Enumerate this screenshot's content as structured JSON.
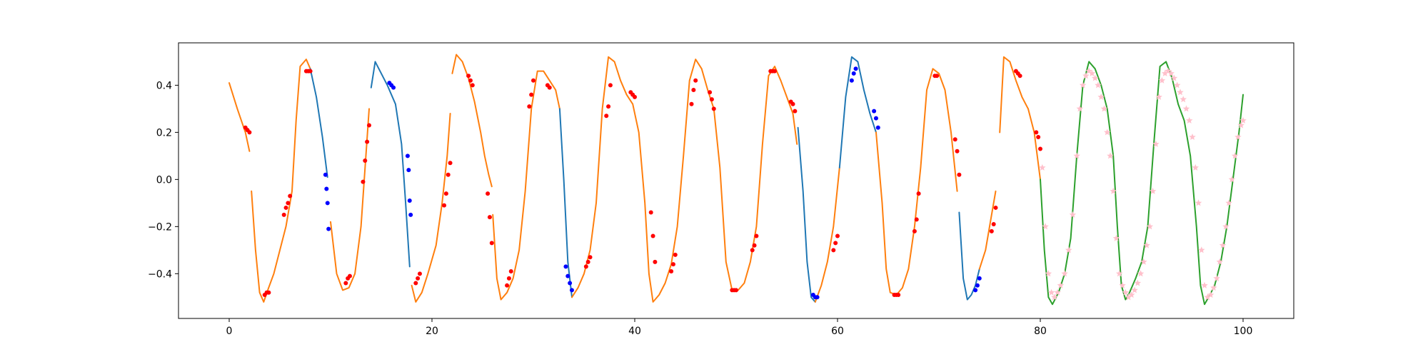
{
  "chart_data": {
    "type": "line",
    "title": "",
    "xlabel": "",
    "ylabel": "",
    "xlim": [
      -5,
      105
    ],
    "ylim": [
      -0.59,
      0.58
    ],
    "xticks": [
      0,
      20,
      40,
      60,
      80,
      100
    ],
    "xtick_labels": [
      "0",
      "20",
      "40",
      "60",
      "80",
      "100"
    ],
    "yticks": [
      -0.4,
      -0.2,
      0.0,
      0.2,
      0.4
    ],
    "ytick_labels": [
      "−0.4",
      "−0.2",
      "0.0",
      "0.2",
      "0.4"
    ],
    "grid": false,
    "legend": "none",
    "colors": {
      "orange": "#ff7f0e",
      "blue": "#1f77b4",
      "green": "#2ca02c",
      "red_points": "#ff0000",
      "blue_points": "#0000ff",
      "pink_points": "#ffc0cb"
    },
    "series": [
      {
        "color": "orange",
        "style": "line",
        "x": [
          0,
          0.8,
          1.6,
          2.0
        ],
        "y": [
          0.41,
          0.3,
          0.2,
          0.12
        ]
      },
      {
        "color": "orange",
        "style": "line",
        "x": [
          2.2,
          2.6,
          3.0,
          3.4,
          3.8,
          4.4,
          5.0,
          5.6,
          6.2,
          6.6,
          7.0,
          7.6,
          8.0
        ],
        "y": [
          -0.05,
          -0.3,
          -0.48,
          -0.52,
          -0.47,
          -0.4,
          -0.3,
          -0.2,
          -0.05,
          0.25,
          0.48,
          0.51,
          0.47
        ]
      },
      {
        "color": "blue",
        "style": "line",
        "x": [
          8.0,
          8.6,
          9.2,
          9.7
        ],
        "y": [
          0.47,
          0.35,
          0.18,
          0.01
        ]
      },
      {
        "color": "orange",
        "style": "line",
        "x": [
          10.0,
          10.6,
          11.2,
          11.8,
          12.4,
          13.0,
          13.4,
          13.8
        ],
        "y": [
          -0.18,
          -0.4,
          -0.47,
          -0.46,
          -0.4,
          -0.2,
          0.05,
          0.3
        ]
      },
      {
        "color": "blue",
        "style": "line",
        "x": [
          14.0,
          14.4,
          15.0,
          15.6,
          16.4,
          17.0,
          17.4,
          17.8
        ],
        "y": [
          0.39,
          0.5,
          0.45,
          0.4,
          0.32,
          0.15,
          -0.1,
          -0.37
        ]
      },
      {
        "color": "orange",
        "style": "line",
        "x": [
          18.0,
          18.4,
          19.0,
          19.6,
          20.4,
          21.0,
          21.5,
          21.8
        ],
        "y": [
          -0.45,
          -0.52,
          -0.48,
          -0.4,
          -0.28,
          -0.1,
          0.1,
          0.28
        ]
      },
      {
        "color": "orange",
        "style": "line",
        "x": [
          22.0,
          22.4,
          23.0,
          23.6,
          24.2,
          24.8,
          25.2,
          25.6,
          25.9
        ],
        "y": [
          0.45,
          0.53,
          0.5,
          0.43,
          0.33,
          0.2,
          0.1,
          0.02,
          -0.03
        ]
      },
      {
        "color": "orange",
        "style": "line",
        "x": [
          26.0,
          26.4,
          26.8,
          27.4,
          28.0,
          28.6,
          29.2,
          29.8,
          30.4,
          31.0,
          31.6,
          32.2,
          32.6
        ],
        "y": [
          -0.15,
          -0.42,
          -0.51,
          -0.48,
          -0.42,
          -0.3,
          -0.05,
          0.3,
          0.46,
          0.46,
          0.42,
          0.38,
          0.3
        ]
      },
      {
        "color": "blue",
        "style": "line",
        "x": [
          32.6,
          33.0,
          33.4,
          33.8
        ],
        "y": [
          0.3,
          0.0,
          -0.35,
          -0.5
        ]
      },
      {
        "color": "orange",
        "style": "line",
        "x": [
          33.8,
          34.4,
          35.0,
          35.6,
          36.2,
          36.8,
          37.4,
          38.0,
          38.6,
          39.2,
          39.8,
          40.4,
          41.0,
          41.4,
          41.8,
          42.4,
          43.0,
          43.6,
          44.2,
          44.8,
          45.4,
          46.0,
          46.6,
          47.2,
          47.8,
          48.4,
          49.0,
          49.6,
          50.2,
          50.8,
          51.4,
          52.0,
          52.6,
          53.2,
          53.8,
          54.4,
          55.0,
          55.6,
          56.0
        ],
        "y": [
          -0.5,
          -0.46,
          -0.4,
          -0.3,
          -0.1,
          0.3,
          0.52,
          0.5,
          0.42,
          0.36,
          0.32,
          0.2,
          -0.1,
          -0.4,
          -0.52,
          -0.49,
          -0.44,
          -0.36,
          -0.2,
          0.1,
          0.42,
          0.51,
          0.47,
          0.38,
          0.3,
          0.05,
          -0.35,
          -0.47,
          -0.47,
          -0.44,
          -0.35,
          -0.2,
          0.15,
          0.44,
          0.48,
          0.42,
          0.35,
          0.28,
          0.15
        ]
      },
      {
        "color": "blue",
        "style": "line",
        "x": [
          56.1,
          56.6,
          57.0,
          57.4,
          57.8
        ],
        "y": [
          0.22,
          -0.05,
          -0.35,
          -0.5,
          -0.52
        ]
      },
      {
        "color": "orange",
        "style": "line",
        "x": [
          57.8,
          58.4,
          59.0,
          59.6,
          60.2
        ],
        "y": [
          -0.52,
          -0.45,
          -0.35,
          -0.2,
          0.05
        ]
      },
      {
        "color": "blue",
        "style": "line",
        "x": [
          60.2,
          60.8,
          61.4,
          62.0,
          62.6,
          63.2,
          63.8
        ],
        "y": [
          0.05,
          0.35,
          0.52,
          0.5,
          0.38,
          0.28,
          0.2
        ]
      },
      {
        "color": "orange",
        "style": "line",
        "x": [
          63.8,
          64.4,
          64.8,
          65.2,
          65.8,
          66.4,
          67.0,
          67.6,
          68.2,
          68.8,
          69.4,
          70.0,
          70.6,
          71.2,
          71.8
        ],
        "y": [
          0.2,
          -0.1,
          -0.38,
          -0.48,
          -0.49,
          -0.46,
          -0.38,
          -0.2,
          0.05,
          0.38,
          0.47,
          0.45,
          0.38,
          0.2,
          -0.05
        ]
      },
      {
        "color": "blue",
        "style": "line",
        "x": [
          72.0,
          72.4,
          72.8,
          73.2,
          73.6,
          74.0
        ],
        "y": [
          -0.14,
          -0.42,
          -0.51,
          -0.49,
          -0.45,
          -0.38
        ]
      },
      {
        "color": "orange",
        "style": "line",
        "x": [
          74.0,
          74.6,
          75.2,
          75.6
        ],
        "y": [
          -0.38,
          -0.3,
          -0.15,
          -0.05
        ]
      },
      {
        "color": "orange",
        "style": "line",
        "x": [
          76.0,
          76.4,
          77.0,
          77.6,
          78.2,
          78.8
        ],
        "y": [
          0.2,
          0.52,
          0.5,
          0.42,
          0.35,
          0.3
        ]
      },
      {
        "color": "orange",
        "style": "line",
        "x": [
          78.8,
          79.4,
          80.0
        ],
        "y": [
          0.3,
          0.2,
          0.0
        ]
      },
      {
        "color": "green",
        "style": "line",
        "x": [
          80.0,
          80.4,
          80.8,
          81.2,
          81.8,
          82.4,
          83.0,
          83.6,
          84.2,
          84.8,
          85.4,
          86.0,
          86.6,
          87.2,
          87.6,
          88.0,
          88.4,
          88.8,
          89.4,
          90.0,
          90.6,
          91.2,
          91.8,
          92.4,
          93.0,
          93.6,
          94.2,
          94.8,
          95.4,
          95.8,
          96.2,
          96.6,
          97.2,
          97.8,
          98.4,
          99.0,
          99.6,
          100.0
        ],
        "y": [
          0.0,
          -0.3,
          -0.5,
          -0.53,
          -0.48,
          -0.4,
          -0.25,
          0.1,
          0.4,
          0.5,
          0.47,
          0.4,
          0.3,
          0.1,
          -0.2,
          -0.45,
          -0.51,
          -0.48,
          -0.42,
          -0.35,
          -0.2,
          0.15,
          0.48,
          0.5,
          0.43,
          0.32,
          0.25,
          0.1,
          -0.2,
          -0.45,
          -0.53,
          -0.5,
          -0.45,
          -0.35,
          -0.2,
          0.0,
          0.2,
          0.36
        ]
      }
    ],
    "points": [
      {
        "color": "red",
        "marker": "dot",
        "x": [
          1.6,
          1.8,
          2.0,
          3.5,
          3.7,
          3.9,
          5.4,
          5.6,
          5.8,
          6.0,
          7.6,
          7.8,
          8.0,
          11.5,
          11.7,
          11.9,
          13.2,
          13.4,
          13.6,
          13.8,
          18.4,
          18.6,
          18.8,
          21.2,
          21.4,
          21.6,
          21.8,
          23.6,
          23.8,
          24.0,
          25.5,
          25.7,
          25.9,
          27.4,
          27.6,
          27.8,
          29.6,
          29.8,
          30.0,
          31.4,
          31.6,
          35.2,
          35.4,
          35.6,
          37.2,
          37.4,
          37.6,
          39.6,
          39.8,
          40.0,
          41.6,
          41.8,
          42.0,
          43.6,
          43.8,
          44.0,
          45.6,
          45.8,
          46.0,
          47.4,
          47.6,
          47.8,
          49.6,
          49.8,
          50.0,
          51.6,
          51.8,
          52.0,
          53.4,
          53.6,
          53.8,
          55.4,
          55.6,
          55.8,
          59.6,
          59.8,
          60.0,
          65.6,
          65.8,
          66.0,
          67.6,
          67.8,
          68.0,
          69.6,
          69.8,
          71.6,
          71.8,
          72.0,
          75.2,
          75.4,
          75.6,
          77.6,
          77.8,
          78.0,
          79.6,
          79.8,
          80.0
        ],
        "y": [
          0.22,
          0.21,
          0.2,
          -0.49,
          -0.48,
          -0.48,
          -0.15,
          -0.12,
          -0.1,
          -0.07,
          0.46,
          0.46,
          0.46,
          -0.44,
          -0.42,
          -0.41,
          -0.01,
          0.08,
          0.16,
          0.23,
          -0.44,
          -0.42,
          -0.4,
          -0.11,
          -0.06,
          0.02,
          0.07,
          0.44,
          0.42,
          0.4,
          -0.06,
          -0.16,
          -0.27,
          -0.45,
          -0.42,
          -0.39,
          0.31,
          0.36,
          0.42,
          0.4,
          0.39,
          -0.37,
          -0.35,
          -0.33,
          0.27,
          0.31,
          0.4,
          0.37,
          0.36,
          0.35,
          -0.14,
          -0.24,
          -0.35,
          -0.39,
          -0.36,
          -0.32,
          0.32,
          0.38,
          0.42,
          0.37,
          0.34,
          0.3,
          -0.47,
          -0.47,
          -0.47,
          -0.3,
          -0.28,
          -0.24,
          0.46,
          0.46,
          0.46,
          0.33,
          0.32,
          0.29,
          -0.3,
          -0.27,
          -0.24,
          -0.49,
          -0.49,
          -0.49,
          -0.22,
          -0.17,
          -0.06,
          0.44,
          0.44,
          0.17,
          0.12,
          0.02,
          -0.22,
          -0.19,
          -0.12,
          0.46,
          0.45,
          0.44,
          0.2,
          0.18,
          0.13
        ]
      },
      {
        "color": "blue",
        "marker": "dot",
        "x": [
          9.5,
          9.6,
          9.7,
          9.8,
          15.8,
          16.0,
          16.2,
          17.6,
          17.7,
          17.8,
          17.9,
          33.2,
          33.4,
          33.6,
          33.8,
          57.6,
          57.8,
          58.0,
          61.4,
          61.6,
          61.8,
          63.6,
          63.8,
          64.0,
          73.6,
          73.8,
          74.0
        ],
        "y": [
          0.02,
          -0.04,
          -0.1,
          -0.21,
          0.41,
          0.4,
          0.39,
          0.1,
          0.04,
          -0.09,
          -0.15,
          -0.37,
          -0.41,
          -0.44,
          -0.47,
          -0.49,
          -0.5,
          -0.5,
          0.42,
          0.45,
          0.47,
          0.29,
          0.26,
          0.22,
          -0.47,
          -0.45,
          -0.42
        ]
      },
      {
        "color": "pink",
        "marker": "star",
        "x": [
          80.2,
          80.5,
          80.8,
          81.1,
          81.4,
          81.7,
          82.0,
          82.4,
          82.8,
          83.2,
          83.6,
          83.9,
          84.2,
          84.5,
          84.8,
          85.1,
          85.4,
          85.7,
          86.0,
          86.3,
          86.6,
          86.9,
          87.2,
          87.5,
          87.8,
          88.1,
          88.4,
          88.7,
          89.0,
          89.3,
          89.6,
          89.9,
          90.2,
          90.5,
          90.8,
          91.1,
          91.4,
          91.7,
          92.0,
          92.3,
          92.6,
          92.9,
          93.2,
          93.5,
          93.8,
          94.1,
          94.4,
          94.7,
          95.0,
          95.3,
          95.6,
          95.9,
          96.2,
          96.5,
          96.8,
          97.1,
          97.4,
          97.7,
          98.0,
          98.3,
          98.6,
          98.9,
          99.2,
          99.5,
          99.8,
          100.0
        ],
        "y": [
          0.05,
          -0.2,
          -0.4,
          -0.48,
          -0.5,
          -0.48,
          -0.45,
          -0.4,
          -0.3,
          -0.15,
          0.1,
          0.3,
          0.4,
          0.44,
          0.46,
          0.45,
          0.43,
          0.4,
          0.35,
          0.3,
          0.2,
          0.1,
          -0.05,
          -0.25,
          -0.4,
          -0.45,
          -0.48,
          -0.5,
          -0.49,
          -0.47,
          -0.44,
          -0.4,
          -0.35,
          -0.28,
          -0.2,
          -0.05,
          0.15,
          0.35,
          0.42,
          0.45,
          0.46,
          0.45,
          0.43,
          0.4,
          0.37,
          0.34,
          0.3,
          0.25,
          0.18,
          0.05,
          -0.1,
          -0.3,
          -0.45,
          -0.5,
          -0.49,
          -0.46,
          -0.42,
          -0.35,
          -0.28,
          -0.2,
          -0.1,
          0.0,
          0.1,
          0.18,
          0.23,
          0.25
        ]
      }
    ]
  }
}
